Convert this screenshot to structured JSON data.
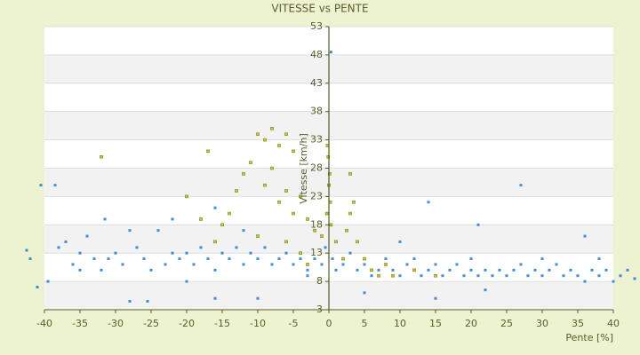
{
  "chart_data": {
    "type": "scatter",
    "title": "VITESSE vs PENTE",
    "x_label": "Pente [%]",
    "y_label": "Vitesse [km/h]",
    "xlim": [
      -40,
      40
    ],
    "ylim": [
      3,
      53
    ],
    "xticks": [
      -40,
      -35,
      -30,
      -25,
      -20,
      -15,
      -10,
      -5,
      0,
      5,
      10,
      15,
      20,
      25,
      30,
      35,
      40
    ],
    "yticks": [
      3,
      8,
      13,
      18,
      23,
      28,
      33,
      38,
      43,
      48,
      53
    ],
    "grid": true,
    "series": [
      {
        "color": "#3a8fd8",
        "x": [
          -42,
          -39.5,
          -38,
          -37,
          -36,
          -35,
          -34,
          -33,
          -32,
          -31,
          -30,
          -29,
          -28,
          -27,
          -26,
          -25,
          -24,
          -23,
          -22,
          -21,
          -20,
          -19,
          -18,
          -17,
          -16,
          -15,
          -14,
          -13,
          -12,
          -11,
          -10,
          -9,
          -8,
          -7,
          -6,
          -5,
          -4,
          -3,
          -2,
          -1,
          -0.5,
          0.5,
          1,
          2,
          3,
          4,
          5,
          6,
          7,
          8,
          9,
          10,
          11,
          12,
          13,
          14,
          15,
          16,
          17,
          18,
          19,
          20,
          21,
          22,
          23,
          24,
          25,
          26,
          27,
          28,
          29,
          30,
          31,
          32,
          33,
          34,
          35,
          36,
          37,
          38,
          39,
          40,
          41,
          42,
          -40.5,
          -38.5,
          -41,
          -42.5,
          -31.5,
          -22,
          -16,
          -12,
          -28,
          27,
          14,
          21,
          36,
          0.3,
          -25.5,
          -16,
          -10,
          15,
          22,
          5,
          10,
          -3,
          12,
          20,
          30,
          -20,
          -35,
          43,
          38
        ],
        "values": [
          12,
          8,
          14,
          15,
          11,
          13,
          16,
          12,
          10,
          12,
          13,
          11,
          4.5,
          14,
          12,
          10,
          17,
          11,
          13,
          12,
          13,
          11,
          14,
          12,
          10,
          13,
          12,
          14,
          11,
          13,
          12,
          14,
          11,
          12,
          13,
          11,
          12,
          10,
          12,
          11,
          14,
          12,
          10,
          11,
          13,
          10,
          11,
          9,
          10,
          12,
          10,
          9,
          11,
          10,
          9,
          10,
          11,
          9,
          10,
          11,
          9,
          10,
          9,
          10,
          9,
          10,
          9,
          10,
          11,
          9,
          10,
          9,
          10,
          11,
          9,
          10,
          9,
          8,
          10,
          9,
          10,
          8,
          9,
          10,
          25,
          25,
          7,
          13.5,
          19,
          19,
          21,
          17,
          17,
          25,
          22,
          18,
          16,
          48.5,
          4.5,
          5,
          5,
          5,
          6.5,
          6,
          15,
          9,
          12,
          12,
          12,
          8,
          10,
          8.5,
          12
        ]
      },
      {
        "color": "#c8c81e",
        "x": [
          -10,
          -9,
          -8,
          -7,
          -6,
          -5,
          -11,
          -12,
          -9,
          -8,
          -7,
          -6,
          -5,
          -4,
          -3,
          -2,
          -1,
          -0.2,
          -0.1,
          0.1,
          0,
          0.2,
          -0.3,
          0.3,
          1,
          2,
          3,
          3.5,
          2.5,
          4,
          5,
          6,
          7,
          8,
          -13,
          -14,
          -15,
          -16,
          -18,
          -17,
          -32,
          -20,
          -10,
          -6,
          -4,
          -3,
          9,
          12,
          15,
          3
        ],
        "values": [
          34,
          33,
          35,
          32,
          34,
          31,
          29,
          27,
          25,
          28,
          22,
          24,
          20,
          23,
          19,
          17,
          16,
          32,
          30,
          27,
          25,
          22,
          20,
          18,
          15,
          12,
          20,
          22,
          17,
          15,
          12,
          10,
          9,
          11,
          24,
          20,
          18,
          15,
          19,
          31,
          30,
          23,
          16,
          15,
          13,
          11,
          9,
          10,
          9,
          27
        ]
      }
    ]
  }
}
